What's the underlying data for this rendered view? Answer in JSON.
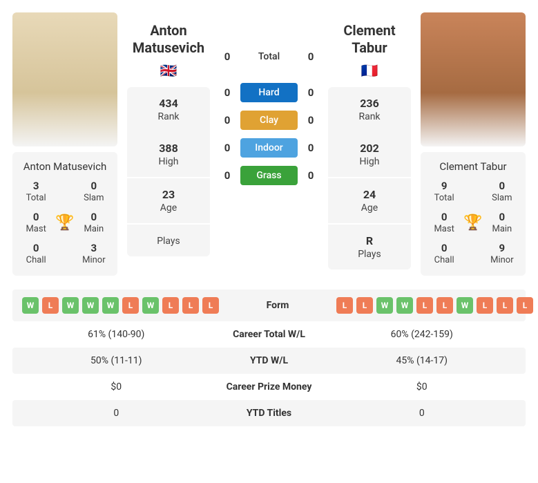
{
  "colors": {
    "win": "#6ac26a",
    "loss": "#ef7c56",
    "hard": "#1271c4",
    "clay": "#e0a233",
    "indoor": "#4ea3e0",
    "grass": "#3aa23a",
    "trophy": "#1e6fd8",
    "panel": "#f5f5f5"
  },
  "p1": {
    "name": "Anton Matusevich",
    "first": "Anton",
    "last": "Matusevich",
    "flag": "🇬🇧",
    "rank": "434",
    "high": "388",
    "age": "23",
    "plays": "",
    "titles": {
      "total": "3",
      "slam": "0",
      "mast": "0",
      "main": "0",
      "chall": "0",
      "minor": "3"
    }
  },
  "p2": {
    "name": "Clement Tabur",
    "first": "Clement",
    "last": "Tabur",
    "flag": "🇫🇷",
    "rank": "236",
    "high": "202",
    "age": "24",
    "plays": "R",
    "titles": {
      "total": "9",
      "slam": "0",
      "mast": "0",
      "main": "0",
      "chall": "0",
      "minor": "9"
    }
  },
  "h2h": {
    "total_label": "Total",
    "surfaces": [
      {
        "label": "Hard",
        "p1": "0",
        "p2": "0",
        "colorKey": "hard"
      },
      {
        "label": "Clay",
        "p1": "0",
        "p2": "0",
        "colorKey": "clay"
      },
      {
        "label": "Indoor",
        "p1": "0",
        "p2": "0",
        "colorKey": "indoor"
      },
      {
        "label": "Grass",
        "p1": "0",
        "p2": "0",
        "colorKey": "grass"
      }
    ],
    "total": {
      "p1": "0",
      "p2": "0"
    }
  },
  "titles_labels": {
    "total": "Total",
    "slam": "Slam",
    "mast": "Mast",
    "main": "Main",
    "chall": "Chall",
    "minor": "Minor"
  },
  "stat_labels": {
    "rank": "Rank",
    "high": "High",
    "age": "Age",
    "plays": "Plays"
  },
  "form": {
    "label": "Form",
    "p1": [
      "W",
      "L",
      "W",
      "W",
      "W",
      "L",
      "W",
      "L",
      "L",
      "L"
    ],
    "p2": [
      "L",
      "L",
      "W",
      "W",
      "L",
      "L",
      "W",
      "L",
      "L",
      "L"
    ]
  },
  "rows": [
    {
      "label": "Career Total W/L",
      "p1": "61% (140-90)",
      "p2": "60% (242-159)"
    },
    {
      "label": "YTD W/L",
      "p1": "50% (11-11)",
      "p2": "45% (14-17)"
    },
    {
      "label": "Career Prize Money",
      "p1": "$0",
      "p2": "$0"
    },
    {
      "label": "YTD Titles",
      "p1": "0",
      "p2": "0"
    }
  ]
}
